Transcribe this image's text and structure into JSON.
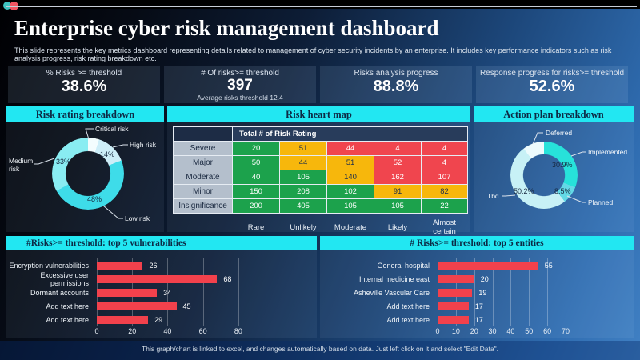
{
  "slide": {
    "title": "Enterprise cyber risk management dashboard",
    "subtitle": "This slide represents the key metrics dashboard representing details related to management of cyber security incidents by an enterprise. It includes key performance indicators such as risk analysis progress, risk rating breakdown etc.",
    "footer": "This graph/chart is linked to excel, and changes automatically based on data. Just left click on it and select \"Edit Data\"."
  },
  "colors": {
    "accent_cyan": "#22e7f2",
    "header_text_navy": "#0d2a45",
    "bar_red": "#f2414c",
    "heat_green": "#1ca24c",
    "heat_yellow": "#f7b70c",
    "heat_red": "#f0454e",
    "background_dark": "#0d1d36",
    "background_blue": "#3571b2"
  },
  "kpis": [
    {
      "label": "% Risks >= threshold",
      "value": "38.6%",
      "sub": ""
    },
    {
      "label": "# Of risks>= threshold",
      "value": "397",
      "sub": "Average risks threshold 12.4"
    },
    {
      "label": "Risks analysis progress",
      "value": "88.8%",
      "sub": ""
    },
    {
      "label": "Response progress for risks>= threshold",
      "value": "52.6%",
      "sub": ""
    }
  ],
  "chart_data": [
    {
      "id": "risk_rating_breakdown",
      "type": "pie",
      "title": "Risk rating breakdown",
      "legend_position": "callout-labels",
      "segments": [
        {
          "label": "Critical risk",
          "value": 5,
          "pct_label": "",
          "color": "#f3fdfe"
        },
        {
          "label": "High risk",
          "value": 14,
          "pct_label": "14%",
          "color": "#cdeef8"
        },
        {
          "label": "Low risk",
          "value": 48,
          "pct_label": "48%",
          "color": "#3edce9"
        },
        {
          "label": "Medium risk",
          "value": 33,
          "pct_label": "33%",
          "color": "#89edf2"
        }
      ]
    },
    {
      "id": "risk_heat_map",
      "type": "heatmap",
      "title": "Risk heart map",
      "corner_header": "Total # of Risk Rating",
      "rows": [
        "Severe",
        "Major",
        "Moderate",
        "Minor",
        "Insignificance"
      ],
      "cols": [
        "Rare",
        "Unlikely",
        "Moderate",
        "Likely",
        "Almost certain"
      ],
      "values": [
        [
          20,
          51,
          44,
          4,
          4
        ],
        [
          50,
          44,
          51,
          52,
          4
        ],
        [
          40,
          105,
          140,
          162,
          107
        ],
        [
          150,
          208,
          102,
          91,
          82
        ],
        [
          200,
          405,
          105,
          105,
          22
        ]
      ],
      "cell_colors": [
        [
          "g",
          "y",
          "r",
          "r",
          "r"
        ],
        [
          "g",
          "y",
          "y",
          "r",
          "r"
        ],
        [
          "g",
          "g",
          "y",
          "r",
          "r"
        ],
        [
          "g",
          "g",
          "g",
          "y",
          "y"
        ],
        [
          "g",
          "g",
          "g",
          "g",
          "g"
        ]
      ],
      "palette": {
        "g": "#1ca24c",
        "y": "#f7b70c",
        "r": "#f0454e"
      },
      "text_on": {
        "g": "#ffffff",
        "y": "#20304a",
        "r": "#ffffff"
      }
    },
    {
      "id": "action_plan_breakdown",
      "type": "pie",
      "title": "Action plan breakdown",
      "legend_position": "callout-labels",
      "segments": [
        {
          "label": "Implemented",
          "value": 30.9,
          "pct_label": "30.9%",
          "color": "#27e2da"
        },
        {
          "label": "Planned",
          "value": 8.5,
          "pct_label": "8.5%",
          "color": "#63d9e6"
        },
        {
          "label": "Tbd",
          "value": 50.2,
          "pct_label": "50.2%",
          "color": "#c7f1f6"
        },
        {
          "label": "Deferred",
          "value": 10.4,
          "pct_label": "",
          "color": "#edfbfd"
        }
      ]
    },
    {
      "id": "top5_vulnerabilities",
      "type": "bar",
      "title": "#Risks>= threshold: top 5 vulnerabilities",
      "categories": [
        "Encryption vulnerabilities",
        "Excessive user permissions",
        "Dormant accounts",
        "Add text here",
        "Add text here"
      ],
      "values": [
        26,
        68,
        34,
        45,
        29
      ],
      "xticks": [
        0,
        20,
        40,
        60,
        80
      ],
      "axis_max": 90,
      "bar_color": "#f2414c",
      "xlabel": "",
      "ylabel": "",
      "grid": true
    },
    {
      "id": "top5_entities",
      "type": "bar",
      "title": "# Risks>= threshold: top 5 entities",
      "categories": [
        "General hospital",
        "Internal medicine east",
        "Asheville Vascular Care",
        "Add text here",
        "Add text here"
      ],
      "values": [
        55,
        20,
        19,
        17,
        17
      ],
      "xticks": [
        0,
        10,
        20,
        30,
        40,
        50,
        60,
        70
      ],
      "axis_max": 77,
      "bar_color": "#f2414c",
      "xlabel": "",
      "ylabel": "",
      "grid": true
    }
  ]
}
